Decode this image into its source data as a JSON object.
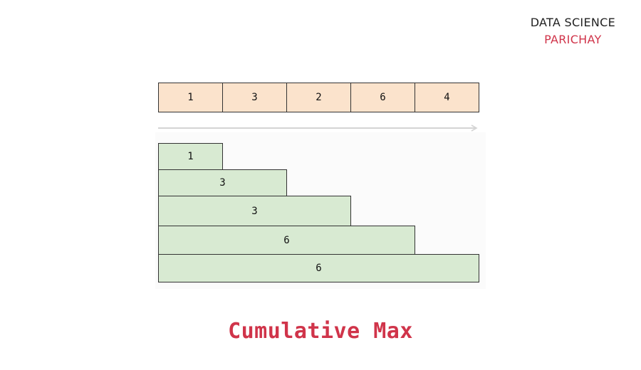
{
  "brand": {
    "line1": "DATA SCIENCE",
    "line2": "PARICHAY"
  },
  "input": {
    "values": [
      "1",
      "3",
      "2",
      "6",
      "4"
    ]
  },
  "output": {
    "values": [
      "1",
      "3",
      "3",
      "6",
      "6"
    ]
  },
  "title": "Cumulative Max",
  "colors": {
    "input_fill": "#fbe3cc",
    "output_fill": "#d8ead2",
    "border": "#333333",
    "accent": "#d0344a",
    "arrow": "#d4d4d4"
  }
}
